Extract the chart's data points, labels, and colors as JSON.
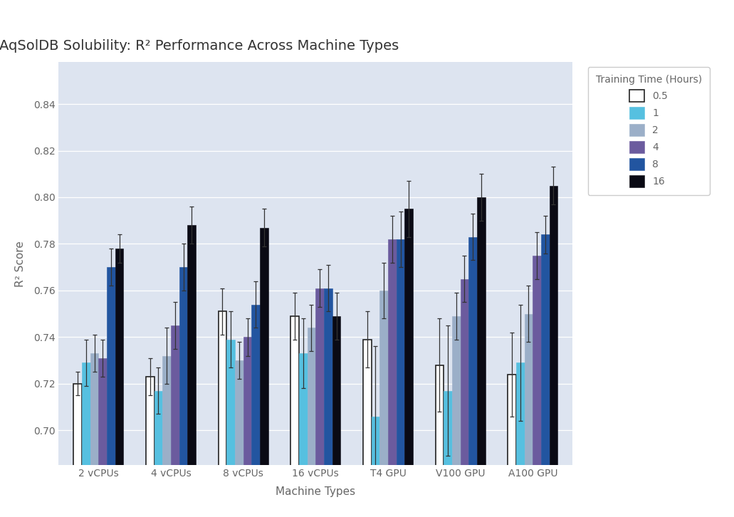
{
  "title": "AqSolDB Solubility: R² Performance Across Machine Types",
  "xlabel": "Machine Types",
  "ylabel": "R² Score",
  "legend_title": "Training Time (Hours)",
  "legend_labels": [
    "0.5",
    "1",
    "2",
    "4",
    "8",
    "16"
  ],
  "bar_colors": [
    "#ffffff",
    "#56c0e0",
    "#9bafc8",
    "#6b5b9e",
    "#2255a0",
    "#0a0a14"
  ],
  "bar_edgecolors": [
    "#222222",
    "#56c0e0",
    "#9bafc8",
    "#6b5b9e",
    "#2255a0",
    "#0a0a14"
  ],
  "categories": [
    "2 vCPUs",
    "4 vCPUs",
    "8 vCPUs",
    "16 vCPUs",
    "T4 GPU",
    "V100 GPU",
    "A100 GPU"
  ],
  "values": {
    "0.5": [
      0.72,
      0.723,
      0.751,
      0.749,
      0.739,
      0.728,
      0.724
    ],
    "1": [
      0.729,
      0.717,
      0.739,
      0.733,
      0.706,
      0.717,
      0.729
    ],
    "2": [
      0.733,
      0.732,
      0.73,
      0.744,
      0.76,
      0.749,
      0.75
    ],
    "4": [
      0.731,
      0.745,
      0.74,
      0.761,
      0.782,
      0.765,
      0.775
    ],
    "8": [
      0.77,
      0.77,
      0.754,
      0.761,
      0.782,
      0.783,
      0.784
    ],
    "16": [
      0.778,
      0.788,
      0.787,
      0.749,
      0.795,
      0.8,
      0.805
    ]
  },
  "errors": {
    "0.5": [
      0.005,
      0.008,
      0.01,
      0.01,
      0.012,
      0.02,
      0.018
    ],
    "1": [
      0.01,
      0.01,
      0.012,
      0.015,
      0.03,
      0.028,
      0.025
    ],
    "2": [
      0.008,
      0.012,
      0.008,
      0.01,
      0.012,
      0.01,
      0.012
    ],
    "4": [
      0.008,
      0.01,
      0.008,
      0.008,
      0.01,
      0.01,
      0.01
    ],
    "8": [
      0.008,
      0.01,
      0.01,
      0.01,
      0.012,
      0.01,
      0.008
    ],
    "16": [
      0.006,
      0.008,
      0.008,
      0.01,
      0.012,
      0.01,
      0.008
    ]
  },
  "ylim": [
    0.685,
    0.858
  ],
  "yticks": [
    0.7,
    0.72,
    0.74,
    0.76,
    0.78,
    0.8,
    0.82,
    0.84
  ],
  "axes_bg": "#dde4f0",
  "fig_bg": "#ffffff",
  "title_fontsize": 14,
  "axis_label_fontsize": 11,
  "tick_fontsize": 10,
  "legend_fontsize": 10,
  "bar_width": 0.115,
  "text_color": "#666666"
}
